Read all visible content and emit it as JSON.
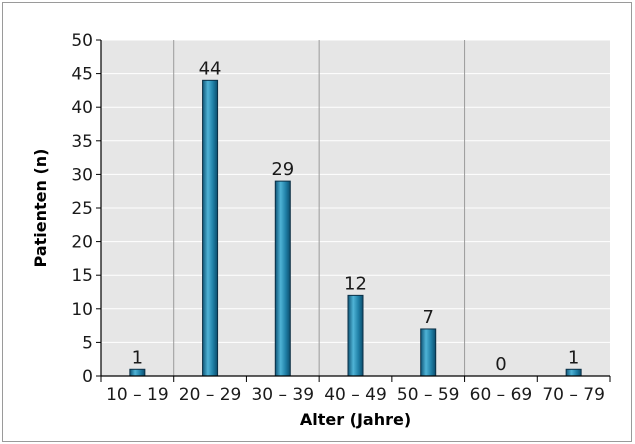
{
  "chart_data": {
    "type": "bar",
    "title": "",
    "xlabel": "Alter (Jahre)",
    "ylabel": "Patienten (n)",
    "categories": [
      "10 – 19",
      "20 – 29",
      "30 – 39",
      "40 – 49",
      "50 – 59",
      "60 – 69",
      "70 – 79"
    ],
    "values": [
      1,
      44,
      29,
      12,
      7,
      0,
      1
    ],
    "data_labels": [
      "1",
      "44",
      "29",
      "12",
      "7",
      "0",
      "1"
    ],
    "ylim": [
      0,
      50
    ],
    "yticks": [
      "0",
      "5",
      "10",
      "15",
      "20",
      "25",
      "30",
      "35",
      "40",
      "45",
      "50"
    ],
    "grid": "horizontal white lines and vertical separators on plot background",
    "colors": {
      "plot_background": "#e6e6e6",
      "bar_fill": "#1f7fa6",
      "bar_highlight": "#4fb3d6",
      "bar_stroke": "#0b2f45",
      "grid_line": "#ffffff",
      "separator_line": "#9a9a9a",
      "axis": "#000000"
    }
  }
}
